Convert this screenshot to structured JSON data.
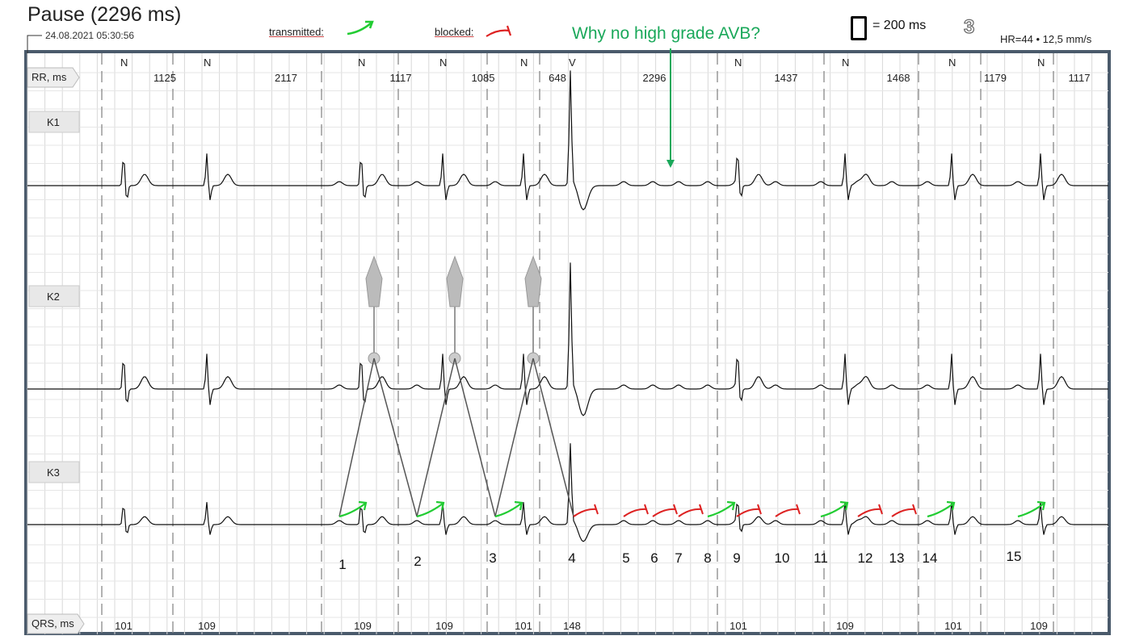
{
  "header": {
    "title": "Pause (2296 ms)",
    "datetime": "24.08.2021 05:30:56",
    "transmitted_label": "transmitted:",
    "blocked_label": "blocked:",
    "question": "Why no high grade AVB?",
    "scale_label": "= 200 ms",
    "page_number": "3",
    "hr_speed": "HR=44  •  12,5 mm/s"
  },
  "colors": {
    "transmitted": "#22cc33",
    "blocked": "#dd2222",
    "question": "#1aa85a",
    "frame": "#4a5a6b",
    "grid": "#d8d8d8",
    "trace": "#111111"
  },
  "chart_data": {
    "type": "ecg",
    "channels": [
      "K1",
      "K2",
      "K3"
    ],
    "rr_label": "RR, ms",
    "qrs_label": "QRS, ms",
    "beat_types": [
      "N",
      "N",
      "N",
      "N",
      "N",
      "V",
      "N",
      "N",
      "N",
      "N"
    ],
    "rr_values": [
      "1125",
      "2117",
      "1117",
      "1085",
      "648",
      "2296",
      "1437",
      "1468",
      "1179",
      "1117"
    ],
    "qrs_values": [
      "101",
      "109",
      "109",
      "109",
      "101",
      "148",
      "101",
      "109",
      "101",
      "109"
    ],
    "p_wave_numbers": [
      "1",
      "2",
      "3",
      "4",
      "5",
      "6",
      "7",
      "8",
      "9",
      "10",
      "11",
      "12",
      "13",
      "14",
      "15"
    ],
    "p_wave_conduction": [
      "transmitted",
      "transmitted",
      "transmitted",
      "blocked",
      "blocked",
      "blocked",
      "blocked",
      "transmitted",
      "blocked",
      "blocked",
      "transmitted",
      "blocked",
      "blocked",
      "transmitted",
      "transmitted"
    ]
  }
}
